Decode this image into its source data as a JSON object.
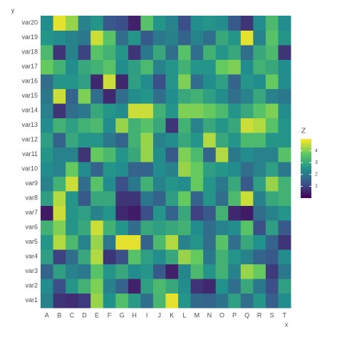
{
  "chart_data": {
    "type": "heatmap",
    "x_label": "x",
    "y_label": "y",
    "legend_title": "Z",
    "x": [
      "A",
      "B",
      "C",
      "D",
      "E",
      "F",
      "G",
      "H",
      "I",
      "J",
      "K",
      "L",
      "M",
      "N",
      "O",
      "P",
      "Q",
      "R",
      "S",
      "T"
    ],
    "y": [
      "var1",
      "var2",
      "var3",
      "var4",
      "var5",
      "var6",
      "var7",
      "var8",
      "var9",
      "var10",
      "var11",
      "var12",
      "var13",
      "var14",
      "var15",
      "var16",
      "var17",
      "var18",
      "var19",
      "var20"
    ],
    "z": [
      [
        2.2,
        0.8,
        0.7,
        0.9,
        4.2,
        2.5,
        3.5,
        2.7,
        1.8,
        3.3,
        4.8,
        2.6,
        1.7,
        1.6,
        1.9,
        2.8,
        1.8,
        2.6,
        1.5,
        2.4
      ],
      [
        2.4,
        1.2,
        2.6,
        3.2,
        4.0,
        2.2,
        1.6,
        0.5,
        2.8,
        3.4,
        3.0,
        2.4,
        0.8,
        0.6,
        2.5,
        1.8,
        3.0,
        2.0,
        1.2,
        2.8
      ],
      [
        1.6,
        2.8,
        2.2,
        2.0,
        3.6,
        2.6,
        3.0,
        2.4,
        2.6,
        1.4,
        0.5,
        2.3,
        3.4,
        2.6,
        3.2,
        2.2,
        4.2,
        3.8,
        0.9,
        2.0
      ],
      [
        2.8,
        1.0,
        1.8,
        3.0,
        4.4,
        0.8,
        1.2,
        3.6,
        2.8,
        2.4,
        3.0,
        4.2,
        3.8,
        2.0,
        3.2,
        2.6,
        2.2,
        1.6,
        1.4,
        2.4
      ],
      [
        2.6,
        4.4,
        3.4,
        2.2,
        4.2,
        2.0,
        4.8,
        4.8,
        1.6,
        3.4,
        4.4,
        2.2,
        2.6,
        1.8,
        3.6,
        1.8,
        3.0,
        2.5,
        1.6,
        0.8
      ],
      [
        3.2,
        4.0,
        2.6,
        3.0,
        4.6,
        3.2,
        2.6,
        1.8,
        3.0,
        2.8,
        3.0,
        3.2,
        2.4,
        1.8,
        2.2,
        2.4,
        3.6,
        1.2,
        2.8,
        1.4
      ],
      [
        0.4,
        4.6,
        2.6,
        2.8,
        2.2,
        2.6,
        0.6,
        0.4,
        1.2,
        2.6,
        1.6,
        3.0,
        1.0,
        1.4,
        3.2,
        0.6,
        0.4,
        1.8,
        2.2,
        2.6
      ],
      [
        2.8,
        4.4,
        2.6,
        1.4,
        3.0,
        3.0,
        0.8,
        0.8,
        2.0,
        1.6,
        2.8,
        3.8,
        1.6,
        2.6,
        1.8,
        3.4,
        4.6,
        2.2,
        3.0,
        3.2
      ],
      [
        2.2,
        3.2,
        4.6,
        1.8,
        3.6,
        2.4,
        1.2,
        2.0,
        3.2,
        2.2,
        2.6,
        2.4,
        3.8,
        2.6,
        2.0,
        3.0,
        1.4,
        2.8,
        4.2,
        3.2
      ],
      [
        2.4,
        2.2,
        3.8,
        2.4,
        1.6,
        2.6,
        2.4,
        1.6,
        1.6,
        2.4,
        2.2,
        4.2,
        3.8,
        2.8,
        2.6,
        2.4,
        1.8,
        2.2,
        2.8,
        2.0
      ],
      [
        2.6,
        2.2,
        2.2,
        0.8,
        3.8,
        3.4,
        2.6,
        3.0,
        4.2,
        2.4,
        1.4,
        4.0,
        3.4,
        1.6,
        4.4,
        2.0,
        2.4,
        2.2,
        2.2,
        3.6
      ],
      [
        2.8,
        1.6,
        3.0,
        2.6,
        2.6,
        2.0,
        1.6,
        3.2,
        4.2,
        2.2,
        2.4,
        3.0,
        2.6,
        4.4,
        3.0,
        2.6,
        3.4,
        3.4,
        2.6,
        2.6
      ],
      [
        2.4,
        3.2,
        2.8,
        3.2,
        3.4,
        2.4,
        4.2,
        3.2,
        3.6,
        3.0,
        0.8,
        3.2,
        2.2,
        3.0,
        2.6,
        3.0,
        4.6,
        4.4,
        3.6,
        2.6
      ],
      [
        2.2,
        0.8,
        1.8,
        2.0,
        3.0,
        2.6,
        2.4,
        4.6,
        4.6,
        3.2,
        2.6,
        4.0,
        4.0,
        3.8,
        3.4,
        2.6,
        3.0,
        3.6,
        4.0,
        2.4
      ],
      [
        2.0,
        4.6,
        1.6,
        4.0,
        1.8,
        0.6,
        1.8,
        2.4,
        2.6,
        1.8,
        2.4,
        3.0,
        3.2,
        2.8,
        2.4,
        1.8,
        2.2,
        3.0,
        2.2,
        2.0
      ],
      [
        1.8,
        2.6,
        2.6,
        2.8,
        0.6,
        4.6,
        0.6,
        2.8,
        2.4,
        1.2,
        2.6,
        4.0,
        1.8,
        2.4,
        2.8,
        1.6,
        2.6,
        2.4,
        3.8,
        2.4
      ],
      [
        3.8,
        3.2,
        2.4,
        3.0,
        3.2,
        3.6,
        2.4,
        2.8,
        3.4,
        2.2,
        2.6,
        3.2,
        2.6,
        2.6,
        3.8,
        4.0,
        2.4,
        3.2,
        3.0,
        2.4
      ],
      [
        3.4,
        0.8,
        2.2,
        1.0,
        3.6,
        3.2,
        2.6,
        0.8,
        2.0,
        3.0,
        1.8,
        3.6,
        1.8,
        3.2,
        2.6,
        3.0,
        1.8,
        3.0,
        3.4,
        0.8
      ],
      [
        2.6,
        2.4,
        2.2,
        2.0,
        4.6,
        3.6,
        1.8,
        2.6,
        1.4,
        2.0,
        2.2,
        1.6,
        2.2,
        1.8,
        3.0,
        2.6,
        4.8,
        2.2,
        3.6,
        2.6
      ],
      [
        2.4,
        4.8,
        4.2,
        2.2,
        2.6,
        1.4,
        1.2,
        0.5,
        3.6,
        2.6,
        2.2,
        1.2,
        2.4,
        2.6,
        2.4,
        1.4,
        0.8,
        2.4,
        3.4,
        2.4
      ]
    ],
    "zlim": [
      0,
      5
    ],
    "zticks": [
      1,
      2,
      3,
      4
    ],
    "colorscale": [
      "#440154",
      "#3b528b",
      "#21918c",
      "#5ec962",
      "#fde725"
    ]
  }
}
